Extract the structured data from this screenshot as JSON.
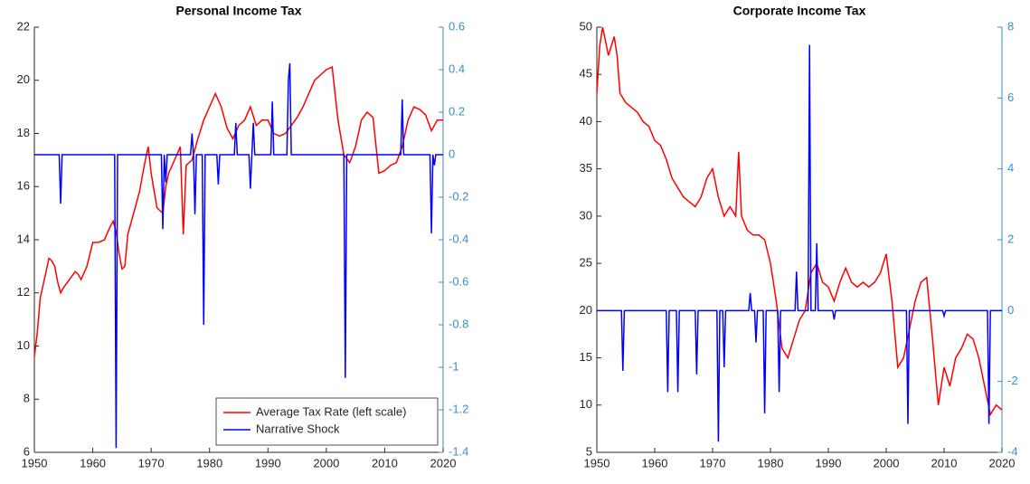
{
  "chart_data": [
    {
      "type": "line",
      "title": "Personal Income Tax",
      "xlim": [
        1950,
        2020
      ],
      "xticks": [
        1950,
        1960,
        1970,
        1980,
        1990,
        2000,
        2010,
        2020
      ],
      "ylim": [
        6,
        22
      ],
      "yticks": [
        6,
        8,
        10,
        12,
        14,
        16,
        18,
        20,
        22
      ],
      "y2lim": [
        -1.4,
        0.6
      ],
      "y2ticks": [
        -1.4,
        -1.2,
        -1,
        -0.8,
        -0.6,
        -0.4,
        -0.2,
        0,
        0.2,
        0.4,
        0.6
      ],
      "y2color": "#3a8fc5",
      "legend": "lower right",
      "series": [
        {
          "name": "Average Tax Rate (left scale)",
          "color": "#ff0000",
          "x": [
            1950,
            1950.5,
            1951,
            1952,
            1952.5,
            1953,
            1953.5,
            1954,
            1954.5,
            1955,
            1956,
            1957,
            1957.5,
            1958,
            1959,
            1960,
            1961,
            1962,
            1963,
            1963.5,
            1964,
            1964.5,
            1965,
            1965.5,
            1966,
            1967,
            1968,
            1969,
            1969.5,
            1970,
            1971,
            1972,
            1972.5,
            1973,
            1974,
            1975,
            1975.5,
            1976,
            1977,
            1978,
            1979,
            1980,
            1981,
            1982,
            1983,
            1984,
            1985,
            1986,
            1987,
            1988,
            1989,
            1990,
            1991,
            1992,
            1993,
            1994,
            1995,
            1996,
            1997,
            1998,
            1999,
            2000,
            2001,
            2002,
            2003,
            2004,
            2005,
            2006,
            2007,
            2008,
            2009,
            2010,
            2011,
            2012,
            2013,
            2014,
            2015,
            2016,
            2017,
            2018,
            2019,
            2020
          ],
          "values": [
            9.6,
            10.5,
            11.8,
            12.8,
            13.3,
            13.2,
            13,
            12.4,
            12,
            12.2,
            12.5,
            12.8,
            12.7,
            12.5,
            13,
            13.9,
            13.9,
            14,
            14.5,
            14.7,
            14.3,
            13.5,
            12.9,
            13,
            14.2,
            15,
            15.8,
            17,
            17.5,
            16.5,
            15.2,
            15,
            16,
            16.5,
            17,
            17.5,
            14.2,
            16.8,
            17,
            17.8,
            18.5,
            19,
            19.5,
            19,
            18.2,
            17.8,
            18.3,
            18.5,
            19,
            18.3,
            18.5,
            18.5,
            18,
            17.9,
            18,
            18.3,
            18.6,
            19,
            19.5,
            20,
            20.2,
            20.4,
            20.5,
            18.5,
            17.2,
            16.9,
            17.5,
            18.5,
            18.8,
            18.6,
            16.5,
            16.6,
            16.8,
            16.9,
            17.5,
            18.5,
            19,
            18.9,
            18.7,
            18.1,
            18.5,
            18.5
          ]
        },
        {
          "name": "Narrative Shock",
          "color": "#0000ff",
          "axis": "y2",
          "x": [
            1950,
            1954.25,
            1954.5,
            1954.75,
            1963.75,
            1964,
            1964.25,
            1971.75,
            1972,
            1972.25,
            1972.5,
            1972.75,
            1976.75,
            1977,
            1977.25,
            1977.5,
            1977.75,
            1978.75,
            1979,
            1979.25,
            1981.25,
            1981.5,
            1981.75,
            1984.25,
            1984.5,
            1984.75,
            1986.75,
            1987,
            1987.25,
            1987.5,
            1987.75,
            1990.5,
            1990.75,
            1991,
            1993.25,
            1993.5,
            1993.75,
            1994,
            2003,
            2003.25,
            2003.5,
            2012.75,
            2013,
            2013.25,
            2017.75,
            2018,
            2018.25,
            2018.5,
            2018.75,
            2020
          ],
          "values": [
            0,
            0,
            -0.23,
            0,
            0,
            -1.38,
            0,
            0,
            -0.35,
            0,
            -0.13,
            0,
            0,
            0.1,
            0,
            -0.28,
            0,
            0,
            -0.8,
            0,
            0,
            -0.14,
            0,
            0,
            0.15,
            0,
            0,
            -0.16,
            0,
            0.15,
            0,
            0,
            0.25,
            0,
            0,
            0.35,
            0.43,
            0,
            0,
            -1.05,
            0,
            0,
            0.26,
            0,
            0,
            -0.37,
            0,
            -0.05,
            0,
            0
          ]
        }
      ]
    },
    {
      "type": "line",
      "title": "Corporate Income Tax",
      "xlim": [
        1950,
        2020
      ],
      "xticks": [
        1950,
        1960,
        1970,
        1980,
        1990,
        2000,
        2010,
        2020
      ],
      "ylim": [
        5,
        50
      ],
      "yticks": [
        5,
        10,
        15,
        20,
        25,
        30,
        35,
        40,
        45,
        50
      ],
      "y2lim": [
        -4,
        8
      ],
      "y2ticks": [
        -4,
        -2,
        0,
        2,
        4,
        6,
        8
      ],
      "y2color": "#3a8fc5",
      "series": [
        {
          "color": "#ff0000",
          "x": [
            1950,
            1950.5,
            1951,
            1952,
            1953,
            1953.5,
            1954,
            1955,
            1956,
            1957,
            1958,
            1959,
            1960,
            1961,
            1962,
            1963,
            1964,
            1965,
            1966,
            1967,
            1968,
            1969,
            1970,
            1971,
            1972,
            1973,
            1974,
            1974.5,
            1975,
            1976,
            1977,
            1978,
            1979,
            1980,
            1981,
            1982,
            1983,
            1984,
            1985,
            1986,
            1987,
            1988,
            1989,
            1990,
            1991,
            1992,
            1993,
            1994,
            1995,
            1996,
            1997,
            1998,
            1999,
            2000,
            2001,
            2002,
            2003,
            2004,
            2005,
            2006,
            2007,
            2008,
            2009,
            2010,
            2011,
            2012,
            2013,
            2014,
            2015,
            2016,
            2017,
            2018,
            2019,
            2020
          ],
          "values": [
            43,
            48,
            50,
            47,
            49,
            47,
            43,
            42,
            41.5,
            41,
            40,
            39.5,
            38,
            37.5,
            36,
            34,
            33,
            32,
            31.5,
            31,
            32,
            34,
            35,
            32,
            30,
            31,
            30,
            36.8,
            30,
            28.5,
            28,
            28,
            27.5,
            25,
            21,
            16,
            15,
            17,
            19,
            20,
            24,
            25,
            23,
            22.5,
            21,
            23,
            24.5,
            23,
            22.5,
            23,
            22.5,
            23,
            24,
            26,
            21,
            14,
            15,
            18,
            21,
            23,
            23.5,
            17,
            10,
            14,
            12,
            15,
            16,
            17.5,
            17,
            15,
            12,
            9,
            10,
            9.5
          ]
        },
        {
          "color": "#0000ff",
          "axis": "y2",
          "x": [
            1950,
            1954.25,
            1954.5,
            1954.75,
            1962,
            1962.25,
            1962.5,
            1963.75,
            1964,
            1964.25,
            1967,
            1967.25,
            1967.5,
            1970.75,
            1971,
            1971.25,
            1971.75,
            1972,
            1972.25,
            1976.25,
            1976.5,
            1976.75,
            1977.25,
            1977.5,
            1977.75,
            1978.75,
            1979,
            1979.25,
            1981.25,
            1981.5,
            1981.75,
            1984.25,
            1984.5,
            1984.75,
            1986.5,
            1986.75,
            1987,
            1987.75,
            1988,
            1988.25,
            1990.75,
            1991,
            1991.25,
            2003.5,
            2003.75,
            2004,
            2009.75,
            2010,
            2010.25,
            2017.5,
            2017.75,
            2018,
            2020
          ],
          "values": [
            0,
            0,
            -1.7,
            0,
            0,
            -2.3,
            0,
            0,
            -2.3,
            0,
            0,
            -1.8,
            0,
            0,
            -3.7,
            0,
            0,
            -1.6,
            0,
            0,
            0.5,
            0,
            0,
            -0.9,
            0,
            0,
            -2.9,
            0,
            0,
            -2.3,
            0,
            0,
            1.1,
            0,
            0,
            7.5,
            0,
            0,
            1.9,
            0,
            0,
            -0.25,
            0,
            0,
            -3.2,
            0,
            0,
            -0.15,
            0,
            0,
            -3.2,
            0,
            0
          ]
        }
      ]
    }
  ]
}
